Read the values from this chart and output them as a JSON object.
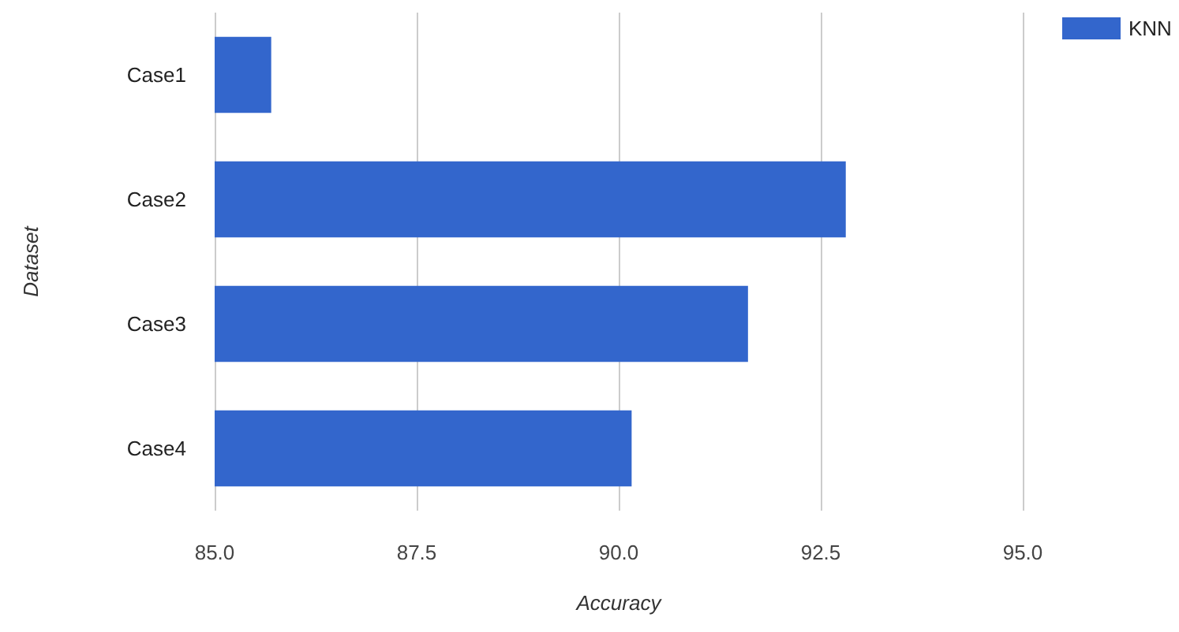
{
  "chart_data": {
    "type": "bar",
    "orientation": "horizontal",
    "xlabel": "Accuracy",
    "ylabel": "Dataset",
    "categories": [
      "Case1",
      "Case2",
      "Case3",
      "Case4"
    ],
    "series": [
      {
        "name": "KNN",
        "color": "#3366cc",
        "values": [
          85.7,
          92.81,
          91.6,
          90.16
        ]
      }
    ],
    "xlim": [
      85,
      95
    ],
    "xticks": [
      {
        "value": 85,
        "label": "85.0"
      },
      {
        "value": 87.5,
        "label": "87.5"
      },
      {
        "value": 90,
        "label": "90.0"
      },
      {
        "value": 92.5,
        "label": "92.5"
      },
      {
        "value": 95,
        "label": "95.0"
      }
    ],
    "grid": "x",
    "legend": "top right"
  }
}
